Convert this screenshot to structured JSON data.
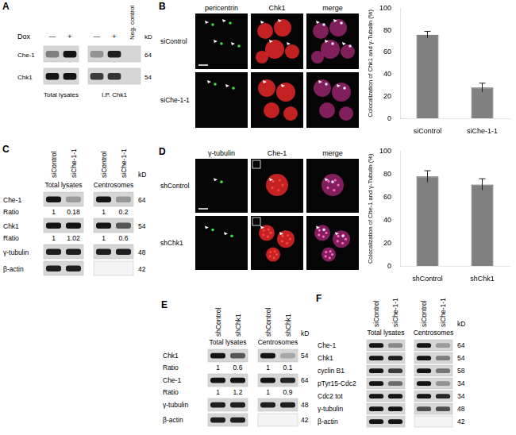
{
  "figure": {
    "panels": [
      {
        "label": "A",
        "blot": {
          "header_label": "Dox",
          "lanes": [
            "—",
            "+",
            "—",
            "+",
            "Neg. control"
          ],
          "groups": [
            {
              "label": "Total lysates",
              "lanes": 2
            },
            {
              "label": "I.P. Chk1",
              "lanes": 3
            }
          ],
          "unit": "kD",
          "rows": [
            {
              "name": "Che-1",
              "kd": 64
            },
            {
              "name": "Chk1",
              "kd": 54
            }
          ]
        }
      },
      {
        "label": "B",
        "images": {
          "columns": [
            "pericentrin",
            "Chk1",
            "merge"
          ],
          "rows": [
            "siControl",
            "siChe-1-1"
          ]
        }
      },
      {
        "label": "C",
        "blot": {
          "lanes": [
            "siControl",
            "siChe-1-1",
            "siControl",
            "siChe-1-1"
          ],
          "groups": [
            {
              "label": "Total lysates",
              "lanes": 2
            },
            {
              "label": "Centrosomes",
              "lanes": 2
            }
          ],
          "unit": "kD",
          "rows": [
            {
              "name": "Che-1",
              "kd": 64,
              "ratio_label": "Ratio",
              "ratios": [
                1,
                0.18,
                1,
                0.2
              ]
            },
            {
              "name": "Chk1",
              "kd": 54,
              "ratio_label": "Ratio",
              "ratios": [
                1,
                1.02,
                1,
                0.6
              ]
            },
            {
              "name": "γ-tubulin",
              "kd": 48
            },
            {
              "name": "β-actin",
              "kd": 42
            }
          ]
        }
      },
      {
        "label": "D",
        "images": {
          "columns": [
            "γ-tubulin",
            "Che-1",
            "merge"
          ],
          "rows": [
            "shControl",
            "shChk1"
          ]
        }
      },
      {
        "label": "E",
        "blot": {
          "lanes": [
            "shControl",
            "shChk1",
            "shControl",
            "shChk1"
          ],
          "groups": [
            {
              "label": "Total lysates",
              "lanes": 2
            },
            {
              "label": "Centrosomes",
              "lanes": 2
            }
          ],
          "unit": "kD",
          "rows": [
            {
              "name": "Chk1",
              "kd": 54,
              "ratio_label": "Ratio",
              "ratios": [
                1,
                0.6,
                1,
                0.1
              ]
            },
            {
              "name": "Che-1",
              "kd": 64,
              "ratio_label": "Ratio",
              "ratios": [
                1,
                1.2,
                1,
                0.9
              ]
            },
            {
              "name": "γ-tubulin",
              "kd": 48
            },
            {
              "name": "β-actin",
              "kd": 42
            }
          ]
        }
      },
      {
        "label": "F",
        "blot": {
          "lanes": [
            "siControl",
            "siChe-1-1",
            "siControl",
            "siChe-1-1"
          ],
          "groups": [
            {
              "label": "Total lysates",
              "lanes": 2
            },
            {
              "label": "Centrosomes",
              "lanes": 2
            }
          ],
          "unit": "kD",
          "rows": [
            {
              "name": "Che-1",
              "kd": 64
            },
            {
              "name": "Chk1",
              "kd": 54
            },
            {
              "name": "cyclin B1",
              "kd": 58
            },
            {
              "name": "pTyr15-Cdc2",
              "kd": 34
            },
            {
              "name": "Cdc2 tot",
              "kd": 34
            },
            {
              "name": "γ-tubulin",
              "kd": 48
            },
            {
              "name": "β-actin",
              "kd": 42
            }
          ]
        }
      }
    ]
  },
  "chart_data": [
    {
      "type": "bar",
      "ylabel": "Colocalization of Chk1 and γ-Tubulin (%)",
      "categories": [
        "siControl",
        "siChe-1-1"
      ],
      "values": [
        76,
        28
      ],
      "errors": [
        3,
        4
      ],
      "color": "#808080",
      "ylim": [
        0,
        100
      ],
      "yticks": [
        0,
        20,
        40,
        60,
        80,
        100
      ],
      "grid": false
    },
    {
      "type": "bar",
      "ylabel": "Colocalization of Che-1 and γ-Tubulin (%)",
      "categories": [
        "shControl",
        "shChk1"
      ],
      "values": [
        78,
        71
      ],
      "errors": [
        5,
        5
      ],
      "color": "#808080",
      "ylim": [
        0,
        100
      ],
      "yticks": [
        0,
        20,
        40,
        60,
        80,
        100
      ],
      "grid": false
    }
  ]
}
